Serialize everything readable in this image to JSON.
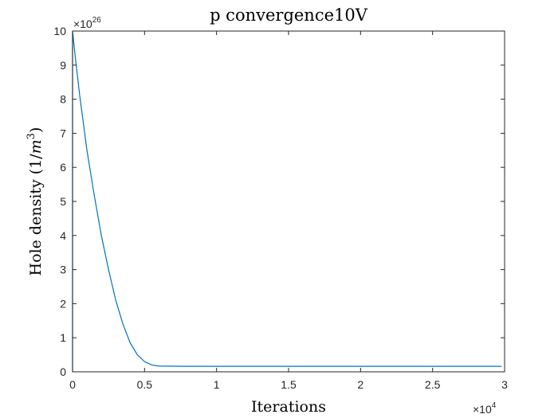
{
  "chart_data": {
    "type": "line",
    "title": "p convergence10V",
    "xlabel": "Iterations",
    "ylabel": "Hole density (1/m³)",
    "ylabel_parts": {
      "prefix": "Hole density (1/",
      "var": "m",
      "sup": "3",
      "suffix": ")"
    },
    "x_multiplier": {
      "base": "×10",
      "exp": "4"
    },
    "y_multiplier": {
      "base": "×10",
      "exp": "26"
    },
    "xlim": [
      0,
      3
    ],
    "ylim": [
      0,
      10
    ],
    "x_ticks": [
      0,
      0.5,
      1,
      1.5,
      2,
      2.5,
      3
    ],
    "x_tick_labels": [
      "0",
      "0.5",
      "1",
      "1.5",
      "2",
      "2.5",
      "3"
    ],
    "y_ticks": [
      0,
      1,
      2,
      3,
      4,
      5,
      6,
      7,
      8,
      9,
      10
    ],
    "y_tick_labels": [
      "0",
      "1",
      "2",
      "3",
      "4",
      "5",
      "6",
      "7",
      "8",
      "9",
      "10"
    ],
    "grid": false,
    "line_color": "#0072BD",
    "series": [
      {
        "x": [
          0,
          0.02,
          0.05,
          0.1,
          0.15,
          0.2,
          0.25,
          0.3,
          0.35,
          0.4,
          0.45,
          0.5,
          0.55,
          0.6,
          0.8,
          1.0,
          1.5,
          2.0,
          2.5,
          2.98
        ],
        "y": [
          10.0,
          9.2,
          8.1,
          6.5,
          5.2,
          4.0,
          3.0,
          2.1,
          1.4,
          0.85,
          0.5,
          0.3,
          0.2,
          0.17,
          0.16,
          0.16,
          0.16,
          0.16,
          0.16,
          0.16
        ]
      }
    ]
  }
}
